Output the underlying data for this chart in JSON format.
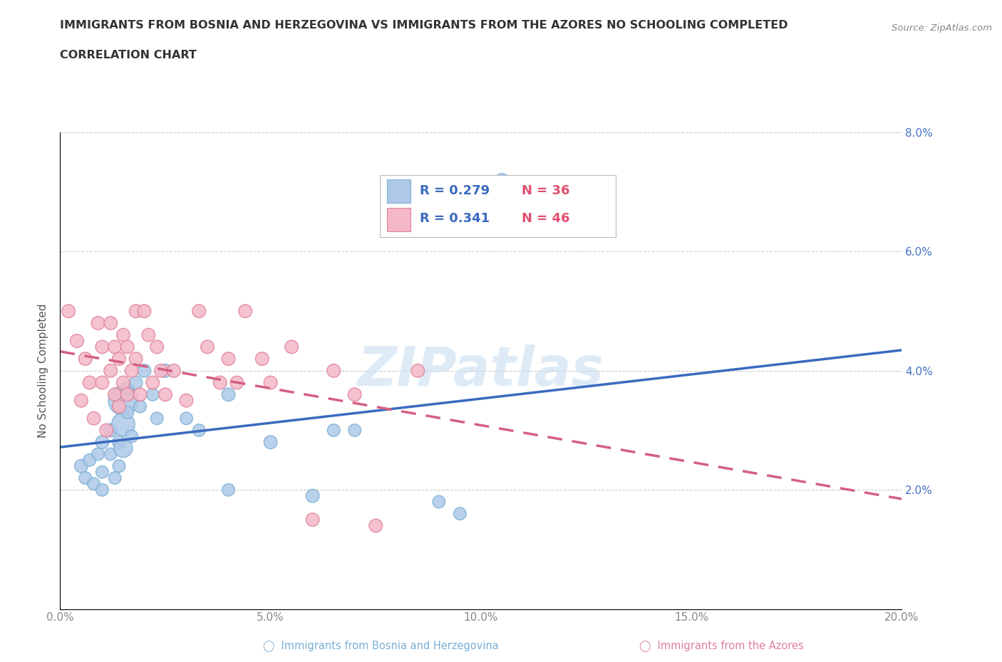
{
  "title_line1": "IMMIGRANTS FROM BOSNIA AND HERZEGOVINA VS IMMIGRANTS FROM THE AZORES NO SCHOOLING COMPLETED",
  "title_line2": "CORRELATION CHART",
  "source_text": "Source: ZipAtlas.com",
  "ylabel": "No Schooling Completed",
  "xmin": 0.0,
  "xmax": 0.2,
  "ymin": 0.0,
  "ymax": 0.08,
  "xticks": [
    0.0,
    0.05,
    0.1,
    0.15,
    0.2
  ],
  "xtick_labels": [
    "0.0%",
    "5.0%",
    "10.0%",
    "15.0%",
    "20.0%"
  ],
  "yticks": [
    0.0,
    0.02,
    0.04,
    0.06,
    0.08
  ],
  "ytick_labels": [
    "",
    "2.0%",
    "4.0%",
    "6.0%",
    "8.0%"
  ],
  "blue_R": 0.279,
  "blue_N": 36,
  "pink_R": 0.341,
  "pink_N": 46,
  "blue_color": "#aec9e8",
  "blue_edge_color": "#7aafd4",
  "pink_color": "#f4b8c8",
  "pink_edge_color": "#e08098",
  "blue_line_color": "#3a6abf",
  "pink_line_color": "#d46080",
  "pink_dash_color": "#e8a0b0",
  "axis_label_color": "#4472c4",
  "title_color": "#333333",
  "watermark_color": "#c8dff0",
  "blue_scatter_x": [
    0.005,
    0.006,
    0.007,
    0.008,
    0.009,
    0.01,
    0.01,
    0.01,
    0.012,
    0.012,
    0.013,
    0.014,
    0.014,
    0.015,
    0.015,
    0.015,
    0.016,
    0.016,
    0.017,
    0.018,
    0.019,
    0.02,
    0.022,
    0.023,
    0.025,
    0.03,
    0.033,
    0.04,
    0.04,
    0.05,
    0.06,
    0.065,
    0.07,
    0.09,
    0.095,
    0.105
  ],
  "blue_scatter_y": [
    0.024,
    0.022,
    0.025,
    0.021,
    0.026,
    0.028,
    0.023,
    0.02,
    0.03,
    0.026,
    0.022,
    0.028,
    0.024,
    0.035,
    0.031,
    0.027,
    0.037,
    0.033,
    0.029,
    0.038,
    0.034,
    0.04,
    0.036,
    0.032,
    0.04,
    0.032,
    0.03,
    0.036,
    0.02,
    0.028,
    0.019,
    0.03,
    0.03,
    0.018,
    0.016,
    0.072
  ],
  "blue_scatter_size": [
    18,
    16,
    16,
    16,
    16,
    18,
    16,
    16,
    18,
    16,
    16,
    18,
    16,
    90,
    55,
    35,
    18,
    16,
    16,
    18,
    16,
    18,
    16,
    16,
    18,
    16,
    16,
    18,
    16,
    18,
    18,
    16,
    16,
    16,
    16,
    18
  ],
  "pink_scatter_x": [
    0.002,
    0.004,
    0.005,
    0.006,
    0.007,
    0.008,
    0.009,
    0.01,
    0.01,
    0.011,
    0.012,
    0.012,
    0.013,
    0.013,
    0.014,
    0.014,
    0.015,
    0.015,
    0.016,
    0.016,
    0.017,
    0.018,
    0.018,
    0.019,
    0.02,
    0.021,
    0.022,
    0.023,
    0.024,
    0.025,
    0.027,
    0.03,
    0.033,
    0.035,
    0.038,
    0.04,
    0.042,
    0.044,
    0.048,
    0.05,
    0.055,
    0.06,
    0.065,
    0.07,
    0.075,
    0.085
  ],
  "pink_scatter_y": [
    0.05,
    0.045,
    0.035,
    0.042,
    0.038,
    0.032,
    0.048,
    0.044,
    0.038,
    0.03,
    0.048,
    0.04,
    0.044,
    0.036,
    0.042,
    0.034,
    0.046,
    0.038,
    0.044,
    0.036,
    0.04,
    0.05,
    0.042,
    0.036,
    0.05,
    0.046,
    0.038,
    0.044,
    0.04,
    0.036,
    0.04,
    0.035,
    0.05,
    0.044,
    0.038,
    0.042,
    0.038,
    0.05,
    0.042,
    0.038,
    0.044,
    0.015,
    0.04,
    0.036,
    0.014,
    0.04
  ],
  "pink_scatter_size": [
    18,
    18,
    18,
    18,
    18,
    18,
    18,
    18,
    18,
    18,
    18,
    18,
    18,
    18,
    18,
    18,
    18,
    18,
    18,
    18,
    18,
    18,
    18,
    18,
    18,
    18,
    18,
    18,
    18,
    18,
    18,
    18,
    18,
    18,
    18,
    18,
    18,
    18,
    18,
    18,
    18,
    18,
    18,
    18,
    18,
    18
  ]
}
